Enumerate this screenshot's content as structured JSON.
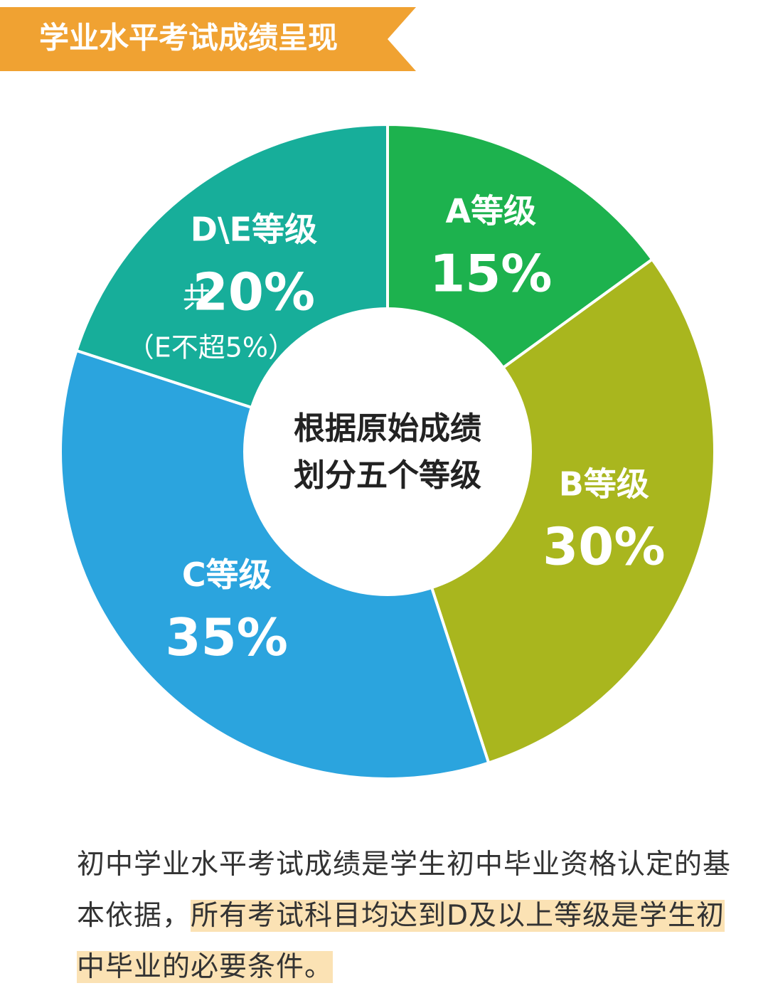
{
  "header": {
    "title": "学业水平考试成绩呈现"
  },
  "chart_data": {
    "type": "pie",
    "center_text": [
      "根据原始成绩",
      "划分五个等级"
    ],
    "categories": [
      "A等级",
      "B等级",
      "C等级",
      "D\\E等级"
    ],
    "values": [
      15,
      30,
      35,
      20
    ],
    "value_labels": [
      "15%",
      "30%",
      "35%",
      "20%"
    ],
    "colors": [
      "#1db24e",
      "#a9b61e",
      "#2ba4de",
      "#17ae9a"
    ],
    "annotations": [
      "共",
      "（E不超5%）"
    ]
  },
  "footer": {
    "text": "初中学业水平考试成绩是学生初中毕业资格认定的基本依据，",
    "highlight": "所有考试科目均达到D及以上等级是学生初中毕业的必要条件。"
  }
}
